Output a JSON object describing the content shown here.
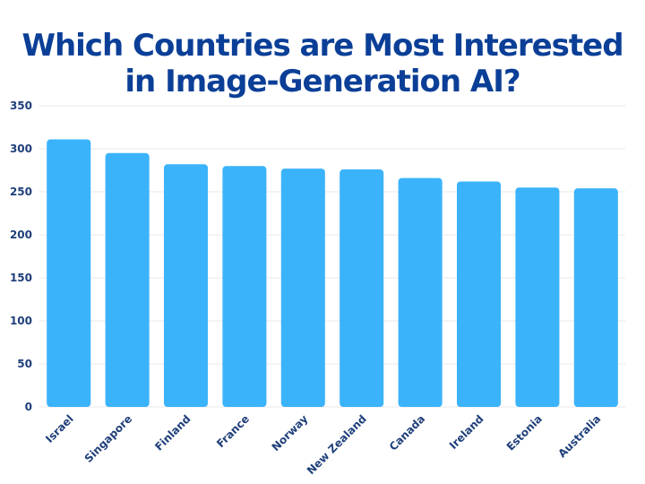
{
  "chart_data": {
    "type": "bar",
    "title_lines": [
      "Which Countries are Most Interested",
      "in Image-Generation AI?"
    ],
    "categories": [
      "Israel",
      "Singapore",
      "Finland",
      "France",
      "Norway",
      "New Zealand",
      "Canada",
      "Ireland",
      "Estonia",
      "Australia"
    ],
    "values": [
      311,
      295,
      282,
      280,
      277,
      276,
      266,
      262,
      255,
      254
    ],
    "ylim": [
      0,
      350
    ],
    "yticks": [
      0,
      50,
      100,
      150,
      200,
      250,
      300,
      350
    ],
    "grid": true,
    "legend": "none",
    "bar_color": "#3bb3fb",
    "title_color": "#0b3f97",
    "label_color": "#1f3f7a"
  }
}
